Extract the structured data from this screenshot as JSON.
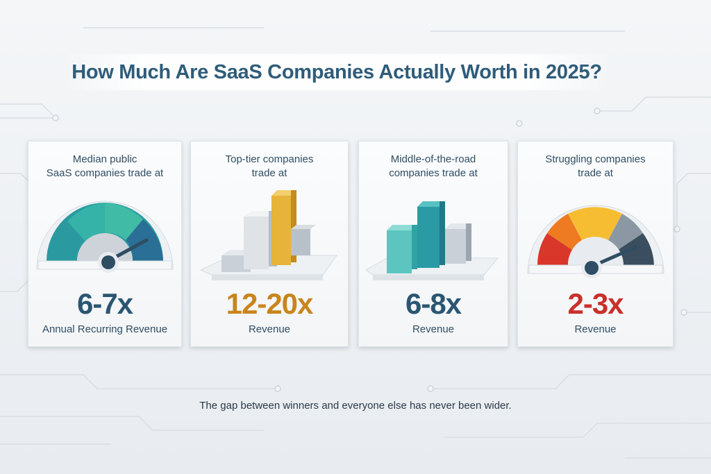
{
  "title": "How Much Are SaaS Companies Actually Worth in 2025?",
  "cards": [
    {
      "heading_line1": "Median public",
      "heading_line2": "SaaS companies trade at",
      "multiple": "6-7x",
      "unit": "Annual Recurring Revenue",
      "icon": "gauge-icon",
      "color": "#2b5672"
    },
    {
      "heading_line1": "Top-tier companies",
      "heading_line2": "trade at",
      "multiple": "12-20x",
      "unit": "Revenue",
      "icon": "bar-chart-icon",
      "color": "#c9851c"
    },
    {
      "heading_line1": "Middle-of-the-road",
      "heading_line2": "companies trade at",
      "multiple": "6-8x",
      "unit": "Revenue",
      "icon": "bar-chart-icon",
      "color": "#2b5672"
    },
    {
      "heading_line1": "Struggling companies",
      "heading_line2": "trade at",
      "multiple": "2-3x",
      "unit": "Revenue",
      "icon": "gauge-icon",
      "color": "#c8302a"
    }
  ],
  "footer": "The gap between winners and everyone else has never been wider."
}
